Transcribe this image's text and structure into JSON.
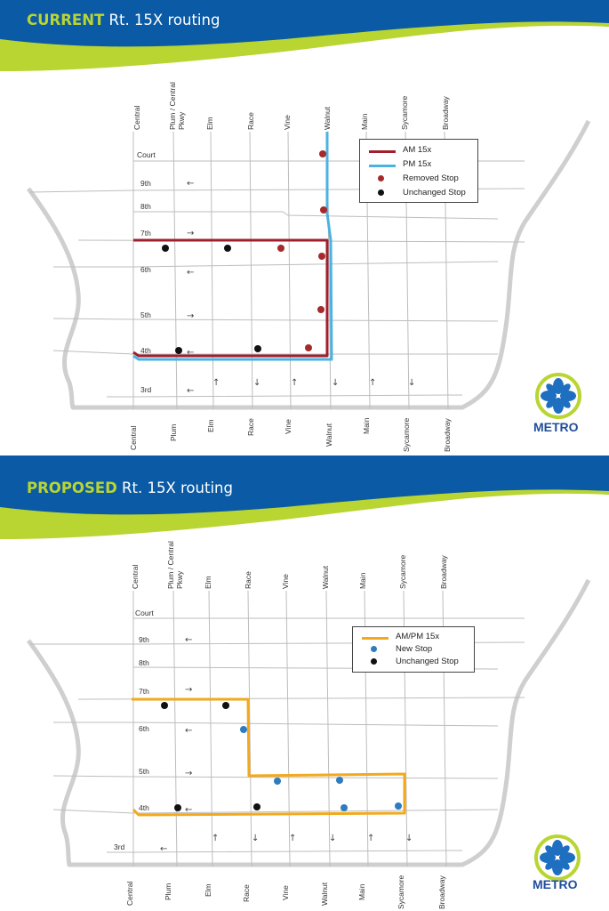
{
  "current": {
    "title_highlight": "CURRENT",
    "title_rest": " Rt. 15X routing",
    "legend": [
      {
        "label": "AM 15x",
        "symbol": "line",
        "color": "#a01f2d"
      },
      {
        "label": "PM 15x",
        "symbol": "line",
        "color": "#4cb3e0"
      },
      {
        "label": "Removed Stop",
        "symbol": "dot",
        "color": "#a52a2a"
      },
      {
        "label": "Unchanged Stop",
        "symbol": "dot",
        "color": "#111111"
      }
    ],
    "streets_top": [
      "Central",
      "Plum / Central",
      "Pkwy",
      "Elm",
      "Race",
      "Vine",
      "Walnut",
      "Main",
      "Sycamore",
      "Broadway"
    ],
    "streets_bottom": [
      "Central",
      "Plum",
      "Elm",
      "Race",
      "Vine",
      "Walnut",
      "Main",
      "Sycamore",
      "Broadway"
    ],
    "cross_streets": [
      "Court",
      "9th",
      "8th",
      "7th",
      "6th",
      "5th",
      "4th",
      "3rd"
    ],
    "arrows_h": [
      "←",
      "→",
      "←",
      "→",
      "←",
      "←"
    ],
    "arrows_v": [
      "↑",
      "↓",
      "↑",
      "↓",
      "↑",
      "↓"
    ],
    "logo_text": "METRO"
  },
  "proposed": {
    "title_highlight": "PROPOSED",
    "title_rest": " Rt. 15X routing",
    "legend": [
      {
        "label": "AM/PM 15x",
        "symbol": "line",
        "color": "#f2a91d"
      },
      {
        "label": "New Stop",
        "symbol": "dot",
        "color": "#2e7bbf"
      },
      {
        "label": "Unchanged Stop",
        "symbol": "dot",
        "color": "#111111"
      }
    ],
    "streets_top": [
      "Central",
      "Plum / Central",
      "Pkwy",
      "Elm",
      "Race",
      "Vine",
      "Walnut",
      "Main",
      "Sycamore",
      "Broadway"
    ],
    "streets_bottom": [
      "Central",
      "Plum",
      "Elm",
      "Race",
      "Vine",
      "Walnut",
      "Main",
      "Sycamore",
      "Broadway"
    ],
    "cross_streets": [
      "Court",
      "9th",
      "8th",
      "7th",
      "6th",
      "5th",
      "4th",
      "3rd"
    ],
    "arrows_h": [
      "←",
      "→",
      "←",
      "→",
      "←",
      "←"
    ],
    "arrows_v": [
      "↑",
      "↓",
      "↑",
      "↓",
      "↑",
      "↓"
    ],
    "logo_text": "METRO"
  },
  "colors": {
    "header_blue": "#0b5aa6",
    "header_green": "#b9d532",
    "grid_line": "#bdbdbd",
    "highway": "#cfcfcf"
  }
}
